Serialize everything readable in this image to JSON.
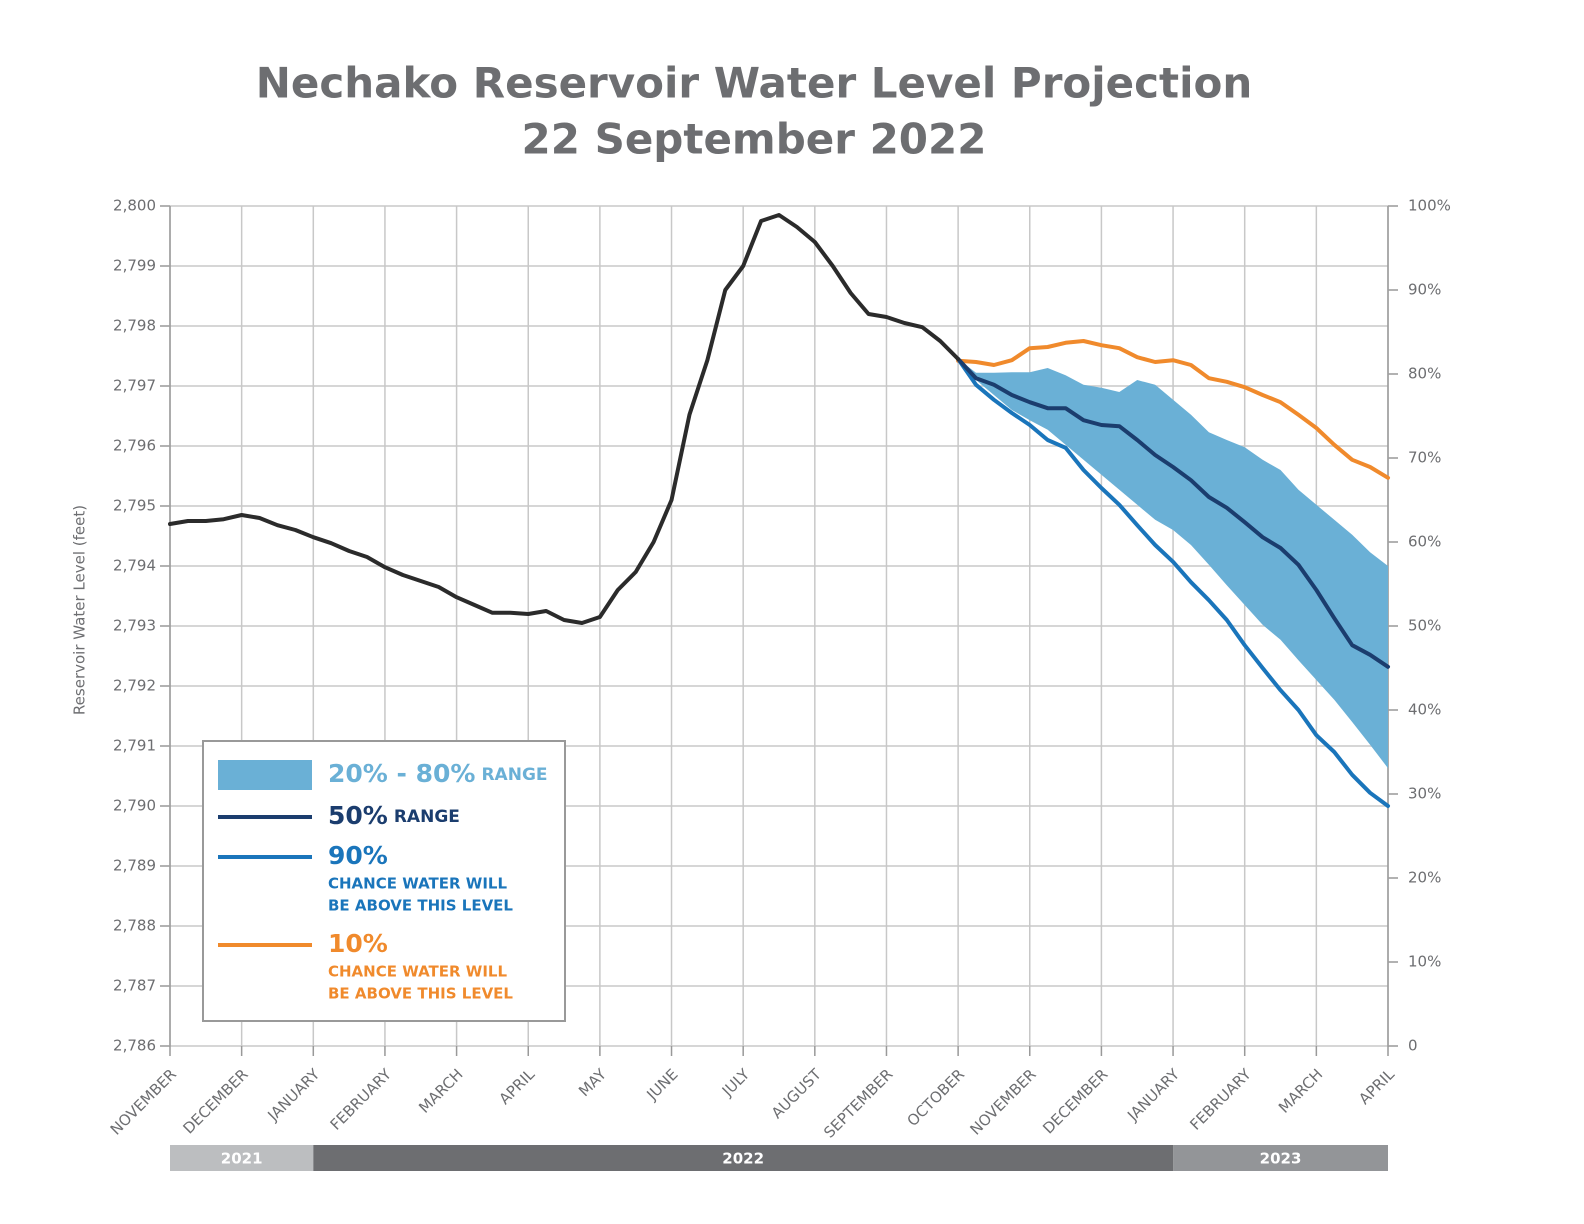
{
  "chart_data": {
    "type": "line",
    "title": "Nechako Reservoir Water Level Projection",
    "subtitle": "22 September 2022",
    "y_label": "Reservoir Water Level (feet)",
    "grid": true,
    "xlim": [
      0,
      17
    ],
    "xticks": [
      {
        "value": 0,
        "label": "NOVEMBER"
      },
      {
        "value": 1,
        "label": "DECEMBER"
      },
      {
        "value": 2,
        "label": "JANUARY"
      },
      {
        "value": 3,
        "label": "FEBRUARY"
      },
      {
        "value": 4,
        "label": "MARCH"
      },
      {
        "value": 5,
        "label": "APRIL"
      },
      {
        "value": 6,
        "label": "MAY"
      },
      {
        "value": 7,
        "label": "JUNE"
      },
      {
        "value": 8,
        "label": "JULY"
      },
      {
        "value": 9,
        "label": "AUGUST"
      },
      {
        "value": 10,
        "label": "SEPTEMBER"
      },
      {
        "value": 11,
        "label": "OCTOBER"
      },
      {
        "value": 12,
        "label": "NOVEMBER"
      },
      {
        "value": 13,
        "label": "DECEMBER"
      },
      {
        "value": 14,
        "label": "JANUARY"
      },
      {
        "value": 15,
        "label": "FEBRUARY"
      },
      {
        "value": 16,
        "label": "MARCH"
      },
      {
        "value": 17,
        "label": "APRIL"
      }
    ],
    "years": [
      {
        "label": "2021",
        "start": 0,
        "end": 2,
        "color": "#bcbec0"
      },
      {
        "label": "2022",
        "start": 2,
        "end": 14,
        "color": "#6d6e71"
      },
      {
        "label": "2023",
        "start": 14,
        "end": 17,
        "color": "#939598"
      }
    ],
    "ylim": [
      2786,
      2800
    ],
    "yticks": [
      {
        "value": 2786,
        "label": "2,786"
      },
      {
        "value": 2787,
        "label": "2,787"
      },
      {
        "value": 2788,
        "label": "2,788"
      },
      {
        "value": 2789,
        "label": "2,789"
      },
      {
        "value": 2790,
        "label": "2,790"
      },
      {
        "value": 2791,
        "label": "2,791"
      },
      {
        "value": 2792,
        "label": "2,792"
      },
      {
        "value": 2793,
        "label": "2,793"
      },
      {
        "value": 2794,
        "label": "2,794"
      },
      {
        "value": 2795,
        "label": "2,795"
      },
      {
        "value": 2796,
        "label": "2,796"
      },
      {
        "value": 2797,
        "label": "2,797"
      },
      {
        "value": 2798,
        "label": "2,798"
      },
      {
        "value": 2799,
        "label": "2,799"
      },
      {
        "value": 2800,
        "label": "2,800"
      }
    ],
    "y2lim": [
      0,
      100
    ],
    "y2ticks": [
      0,
      {
        "value": 10,
        "label": "10%"
      },
      {
        "value": 20,
        "label": "20%"
      },
      {
        "value": 30,
        "label": "30%"
      },
      {
        "value": 40,
        "label": "40%"
      },
      {
        "value": 50,
        "label": "50%"
      },
      {
        "value": 60,
        "label": "60%"
      },
      {
        "value": 70,
        "label": "70%"
      },
      {
        "value": 80,
        "label": "80%"
      },
      {
        "value": 90,
        "label": "90%"
      },
      {
        "value": 100,
        "label": "100%"
      }
    ],
    "x": [
      0,
      0.25,
      0.5,
      0.75,
      1,
      1.25,
      1.5,
      1.75,
      2,
      2.25,
      2.5,
      2.75,
      3,
      3.25,
      3.5,
      3.75,
      4,
      4.25,
      4.5,
      4.75,
      5,
      5.25,
      5.5,
      5.75,
      6,
      6.25,
      6.5,
      6.75,
      7,
      7.25,
      7.5,
      7.75,
      8,
      8.25,
      8.5,
      8.75,
      9,
      9.25,
      9.5,
      9.75,
      10,
      10.25,
      10.5,
      10.75,
      11,
      11.25,
      11.5,
      11.75,
      12,
      12.25,
      12.5,
      12.75,
      13,
      13.25,
      13.5,
      13.75,
      14,
      14.25,
      14.5,
      14.75,
      15,
      15.25,
      15.5,
      15.75,
      16,
      16.25,
      16.5,
      16.75,
      17
    ],
    "observed": {
      "color": "#2b2b2b",
      "values": [
        2794.7,
        2794.75,
        2794.75,
        2794.78,
        2794.85,
        2794.8,
        2794.68,
        2794.6,
        2794.48,
        2794.38,
        2794.25,
        2794.15,
        2793.98,
        2793.85,
        2793.75,
        2793.65,
        2793.48,
        2793.35,
        2793.22,
        2793.22,
        2793.2,
        2793.25,
        2793.1,
        2793.05,
        2793.15,
        2793.6,
        2793.9,
        2794.4,
        2795.1,
        2796.52,
        2797.43,
        2798.6,
        2799.0,
        2799.75,
        2799.85,
        2799.65,
        2799.4,
        2799.0,
        2798.55,
        2798.2,
        2798.15,
        2798.05,
        2797.98,
        2797.75,
        2797.45,
        null,
        null,
        null,
        null,
        null,
        null,
        null,
        null,
        null,
        null,
        null,
        null,
        null,
        null,
        null,
        null,
        null,
        null,
        null,
        null,
        null,
        null,
        null,
        null
      ]
    },
    "series": [
      {
        "name": "20% - 80%",
        "note": [
          "RANGE"
        ],
        "color": "#6ab0d6",
        "high": [
          null,
          null,
          null,
          null,
          null,
          null,
          null,
          null,
          null,
          null,
          null,
          null,
          null,
          null,
          null,
          null,
          null,
          null,
          null,
          null,
          null,
          null,
          null,
          null,
          null,
          null,
          null,
          null,
          null,
          null,
          null,
          null,
          null,
          null,
          null,
          null,
          null,
          null,
          null,
          null,
          null,
          null,
          null,
          null,
          2797.45,
          2797.22,
          2797.22,
          2797.23,
          2797.23,
          2797.3,
          2797.18,
          2797.02,
          2796.97,
          2796.9,
          2797.1,
          2797.02,
          2796.77,
          2796.52,
          2796.23,
          2796.1,
          2795.98,
          2795.77,
          2795.6,
          2795.27,
          2795.02,
          2794.77,
          2794.52,
          2794.23,
          2794.0
        ],
        "low": [
          null,
          null,
          null,
          null,
          null,
          null,
          null,
          null,
          null,
          null,
          null,
          null,
          null,
          null,
          null,
          null,
          null,
          null,
          null,
          null,
          null,
          null,
          null,
          null,
          null,
          null,
          null,
          null,
          null,
          null,
          null,
          null,
          null,
          null,
          null,
          null,
          null,
          null,
          null,
          null,
          null,
          null,
          null,
          null,
          2797.45,
          2797.1,
          2796.85,
          2796.6,
          2796.43,
          2796.27,
          2796.02,
          2795.77,
          2795.52,
          2795.27,
          2795.02,
          2794.77,
          2794.6,
          2794.35,
          2794.02,
          2793.68,
          2793.35,
          2793.02,
          2792.77,
          2792.43,
          2792.1,
          2791.77,
          2791.4,
          2791.02,
          2790.63
        ]
      },
      {
        "name": "50%",
        "note": [
          "RANGE"
        ],
        "color": "#1b3d6e",
        "values": [
          null,
          null,
          null,
          null,
          null,
          null,
          null,
          null,
          null,
          null,
          null,
          null,
          null,
          null,
          null,
          null,
          null,
          null,
          null,
          null,
          null,
          null,
          null,
          null,
          null,
          null,
          null,
          null,
          null,
          null,
          null,
          null,
          null,
          null,
          null,
          null,
          null,
          null,
          null,
          null,
          null,
          null,
          null,
          null,
          2797.45,
          2797.13,
          2797.02,
          2796.85,
          2796.73,
          2796.63,
          2796.63,
          2796.43,
          2796.35,
          2796.33,
          2796.1,
          2795.85,
          2795.65,
          2795.43,
          2795.15,
          2794.97,
          2794.73,
          2794.48,
          2794.3,
          2794.02,
          2793.6,
          2793.13,
          2792.68,
          2792.52,
          2792.32
        ]
      },
      {
        "name": "90%",
        "note": [
          "CHANCE WATER WILL",
          "BE ABOVE THIS LEVEL"
        ],
        "color": "#1a75bb",
        "values": [
          null,
          null,
          null,
          null,
          null,
          null,
          null,
          null,
          null,
          null,
          null,
          null,
          null,
          null,
          null,
          null,
          null,
          null,
          null,
          null,
          null,
          null,
          null,
          null,
          null,
          null,
          null,
          null,
          null,
          null,
          null,
          null,
          null,
          null,
          null,
          null,
          null,
          null,
          null,
          null,
          null,
          null,
          null,
          null,
          2797.45,
          2797.02,
          2796.77,
          2796.55,
          2796.35,
          2796.1,
          2795.97,
          2795.6,
          2795.3,
          2795.02,
          2794.68,
          2794.35,
          2794.07,
          2793.73,
          2793.43,
          2793.1,
          2792.68,
          2792.3,
          2791.93,
          2791.6,
          2791.18,
          2790.9,
          2790.52,
          2790.22,
          2790.0
        ]
      },
      {
        "name": "10%",
        "note": [
          "CHANCE WATER WILL",
          "BE ABOVE THIS LEVEL"
        ],
        "color": "#f08a2c",
        "values": [
          null,
          null,
          null,
          null,
          null,
          null,
          null,
          null,
          null,
          null,
          null,
          null,
          null,
          null,
          null,
          null,
          null,
          null,
          null,
          null,
          null,
          null,
          null,
          null,
          null,
          null,
          null,
          null,
          null,
          null,
          null,
          null,
          null,
          null,
          null,
          null,
          null,
          null,
          null,
          null,
          null,
          null,
          null,
          null,
          2797.42,
          2797.4,
          2797.35,
          2797.43,
          2797.63,
          2797.65,
          2797.72,
          2797.75,
          2797.68,
          2797.63,
          2797.48,
          2797.4,
          2797.43,
          2797.35,
          2797.13,
          2797.07,
          2796.98,
          2796.85,
          2796.73,
          2796.52,
          2796.3,
          2796.02,
          2795.77,
          2795.65,
          2795.47
        ]
      }
    ]
  }
}
